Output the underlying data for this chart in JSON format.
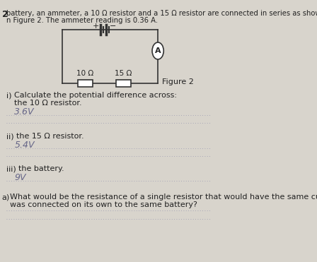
{
  "bg_color": "#d8d4cc",
  "text_color": "#222222",
  "answer_color": "#666688",
  "line_color": "#8888aa",
  "circuit_color": "#333333",
  "title_number": "2",
  "header_line1": "battery, an ammeter, a 10 Ω resistor and a 15 Ω resistor are connected in series as show",
  "header_line2": "n Figure 2. The ammeter reading is 0.36 A.",
  "figure_label": "Figure 2",
  "circuit": {
    "resistor1_label": "10 Ω",
    "resistor2_label": "15 Ω",
    "ammeter_label": "A"
  },
  "questions": [
    {
      "prefix": "i)",
      "text": "Calculate the potential difference across:",
      "subtext": "the 10 Ω resistor.",
      "answer": "3.6V",
      "lines": 2
    },
    {
      "prefix": "ii)",
      "text": "the 15 Ω resistor.",
      "answer": "5.4V",
      "lines": 2
    },
    {
      "prefix": "iii)",
      "text": "the battery.",
      "answer": "9V",
      "lines": 1
    }
  ],
  "last_question": {
    "prefix": "a)",
    "text": "What would be the resistance of a single resistor that would have the same current if",
    "text2": "was connected on its own to the same battery?",
    "lines": 1
  }
}
